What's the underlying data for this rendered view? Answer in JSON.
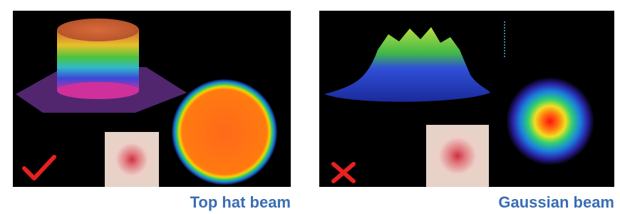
{
  "panels": [
    {
      "label": "Top hat beam"
    },
    {
      "label": "Gaussian beam"
    }
  ]
}
